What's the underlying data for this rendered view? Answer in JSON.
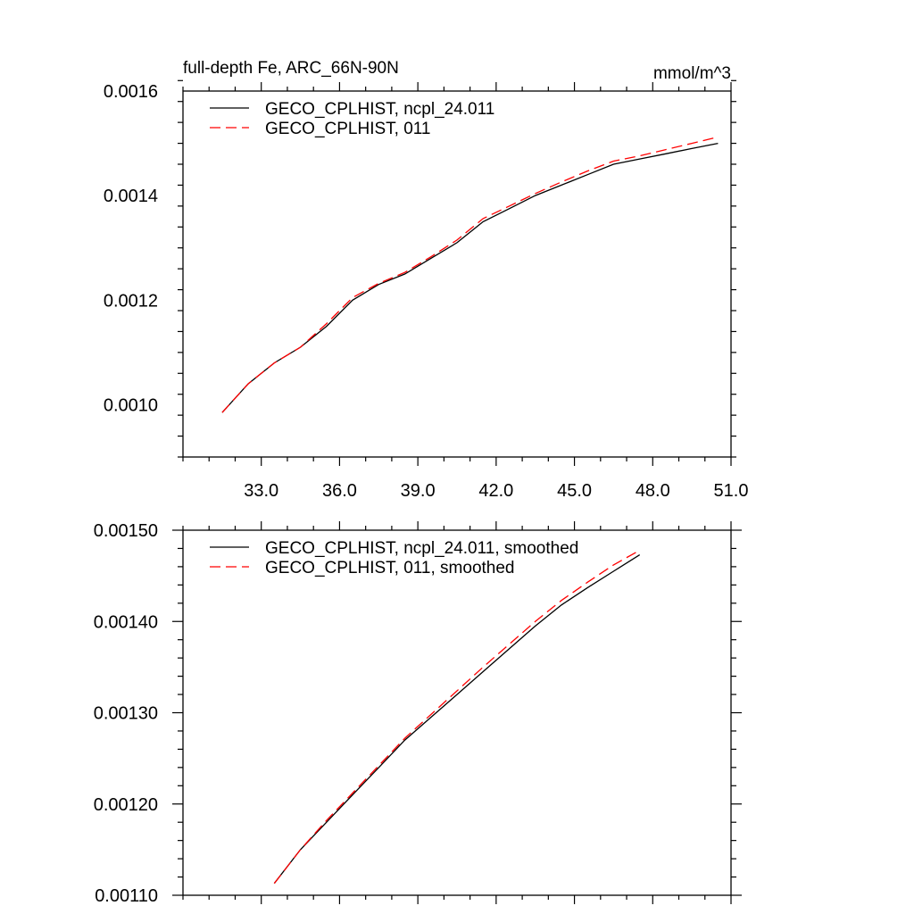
{
  "chart_data": [
    {
      "type": "line",
      "title": "full-depth Fe, ARC_66N-90N",
      "units": "mmol/m^3",
      "xlabel": "",
      "ylabel": "",
      "xlim": [
        30.0,
        51.0
      ],
      "ylim": [
        0.0009,
        0.0016
      ],
      "xticks": [
        33.0,
        36.0,
        39.0,
        42.0,
        45.0,
        48.0,
        51.0
      ],
      "xtick_labels": [
        "33.0",
        "36.0",
        "39.0",
        "42.0",
        "45.0",
        "48.0",
        "51.0"
      ],
      "yticks": [
        0.001,
        0.0012,
        0.0014,
        0.0016
      ],
      "ytick_labels": [
        "0.0010",
        "0.0012",
        "0.0014",
        "0.0016"
      ],
      "legend": "top-left",
      "series": [
        {
          "name": "GECO_CPLHIST, ncpl_24.011",
          "color": "#000000",
          "dash": "solid",
          "x": [
            31.5,
            32.5,
            33.5,
            34.5,
            35.5,
            36.5,
            37.5,
            38.5,
            39.5,
            40.5,
            41.5,
            42.5,
            43.5,
            44.5,
            45.5,
            46.5,
            47.5,
            48.5,
            49.5,
            50.5
          ],
          "y": [
            0.000985,
            0.00104,
            0.00108,
            0.00111,
            0.00115,
            0.0012,
            0.00123,
            0.00125,
            0.00128,
            0.00131,
            0.00135,
            0.001375,
            0.0014,
            0.00142,
            0.00144,
            0.00146,
            0.00147,
            0.00148,
            0.00149,
            0.0015
          ]
        },
        {
          "name": "GECO_CPLHIST, 011",
          "color": "#ff0000",
          "dash": "dashed",
          "x": [
            31.5,
            32.5,
            33.5,
            34.5,
            35.5,
            36.5,
            37.5,
            38.5,
            39.5,
            40.5,
            41.5,
            42.5,
            43.5,
            44.5,
            45.5,
            46.5,
            47.5,
            48.5,
            49.5,
            50.5
          ],
          "y": [
            0.000985,
            0.00104,
            0.00108,
            0.00111,
            0.001155,
            0.001205,
            0.001232,
            0.001253,
            0.001283,
            0.001315,
            0.001356,
            0.00138,
            0.001404,
            0.001426,
            0.001447,
            0.001466,
            0.001476,
            0.001488,
            0.0015,
            0.001512
          ]
        }
      ]
    },
    {
      "type": "line",
      "title": "",
      "xlabel": "",
      "ylabel": "",
      "xlim": [
        30.0,
        51.0
      ],
      "ylim": [
        0.0011,
        0.0015
      ],
      "xticks": [
        33.0,
        36.0,
        39.0,
        42.0,
        45.0,
        48.0,
        51.0
      ],
      "yticks": [
        0.0011,
        0.0012,
        0.0013,
        0.0014,
        0.0015
      ],
      "ytick_labels": [
        "0.00110",
        "0.00120",
        "0.00130",
        "0.00140",
        "0.00150"
      ],
      "legend": "top-left",
      "series": [
        {
          "name": "GECO_CPLHIST, ncpl_24.011, smoothed",
          "color": "#000000",
          "dash": "solid",
          "x": [
            33.5,
            34.5,
            35.5,
            36.5,
            37.5,
            38.5,
            39.5,
            40.5,
            41.5,
            42.5,
            43.5,
            44.5,
            45.5,
            46.5,
            47.5
          ],
          "y": [
            0.001113,
            0.00115,
            0.00118,
            0.00121,
            0.00124,
            0.00127,
            0.001295,
            0.00132,
            0.001345,
            0.00137,
            0.001395,
            0.001418,
            0.001437,
            0.001455,
            0.001473
          ]
        },
        {
          "name": "GECO_CPLHIST, 011, smoothed",
          "color": "#ff0000",
          "dash": "dashed",
          "x": [
            33.5,
            34.5,
            35.5,
            36.5,
            37.5,
            38.5,
            39.5,
            40.5,
            41.5,
            42.5,
            43.5,
            44.5,
            45.5,
            46.5,
            47.5
          ],
          "y": [
            0.001113,
            0.00115,
            0.001182,
            0.001212,
            0.001242,
            0.001272,
            0.001298,
            0.001324,
            0.00135,
            0.001375,
            0.0014,
            0.001423,
            0.001443,
            0.001462,
            0.001478
          ]
        }
      ]
    }
  ]
}
